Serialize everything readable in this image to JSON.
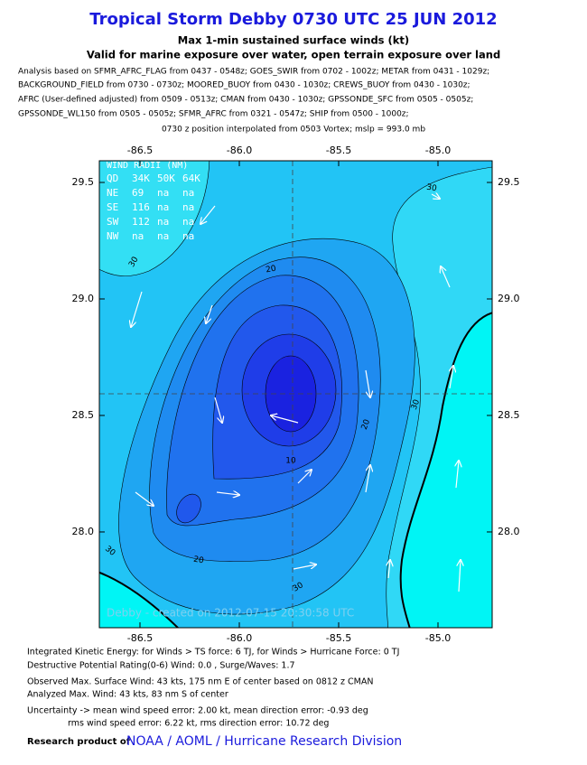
{
  "title": "Tropical Storm Debby 0730 UTC 25 JUN 2012",
  "subtitle": [
    "Max 1-min sustained surface winds (kt)",
    "Valid for marine exposure over water, open terrain exposure over land"
  ],
  "analysis_sources": [
    "Analysis based on SFMR_AFRC_FLAG from 0437 - 0548z; GOES_SWIR from 0702 - 1002z; METAR from 0431 - 1029z;",
    "BACKGROUND_FIELD from 0730 - 0730z; MOORED_BUOY from 0430 - 1030z; CREWS_BUOY from 0430 - 1030z;",
    "AFRC (User-defined adjusted) from 0509 - 0513z; CMAN from 0430 - 1030z; GPSSONDE_SFC from 0505 - 0505z;",
    "GPSSONDE_WL150 from 0505 - 0505z; SFMR_AFRC from 0321 - 0547z; SHIP from 0500 - 1000z;"
  ],
  "position_note": "0730 z position interpolated from 0503 Vortex; mslp = 993.0 mb",
  "map": {
    "xlim": [
      -86.7045,
      -84.7273
    ],
    "ylim": [
      27.589,
      29.593
    ],
    "xticks": [
      -86.5,
      {
        "value": -86,
        "label": "-86.0"
      },
      -85.5,
      {
        "value": -85,
        "label": "-85.0"
      }
    ],
    "yticks": [
      {
        "value": 28,
        "label": "28.0"
      },
      28.5,
      {
        "value": 29,
        "label": "29.0"
      },
      29.5
    ],
    "contour_labels": [
      30,
      20,
      20,
      10,
      20,
      30,
      30,
      30,
      30
    ],
    "wind_radii": {
      "title": "WIND RADII (NM)",
      "header": [
        "QD",
        "34K",
        "50K",
        "64K"
      ],
      "rows": [
        [
          "NE",
          69,
          "na",
          "na"
        ],
        [
          "SE",
          116,
          "na",
          "na"
        ],
        [
          "SW",
          112,
          "na",
          "na"
        ],
        [
          "NW",
          "na",
          "na",
          "na"
        ]
      ]
    },
    "watermark": "Debby - created on 2012-07-15 20:30:58 UTC"
  },
  "footer": {
    "lines": [
      "Integrated Kinetic Energy: for Winds > TS force: 6 TJ, for Winds > Hurricane Force: 0 TJ",
      "Destructive Potential Rating(0-6) Wind: 0.0 , Surge/Waves: 1.7",
      "Observed Max. Surface Wind: 43 kts, 175 nm E of center based on 0812 z CMAN",
      "Analyzed Max. Wind: 43 kts, 83 nm S of center",
      "Uncertainty -> mean wind speed error: 2.00 kt, mean direction error:  -0.93 deg",
      "rms wind speed error: 6.22 kt, rms direction error: 10.72 deg"
    ],
    "credit_prefix": "Research product of",
    "credit": "NOAA / AOML / Hurricane Research Division"
  }
}
